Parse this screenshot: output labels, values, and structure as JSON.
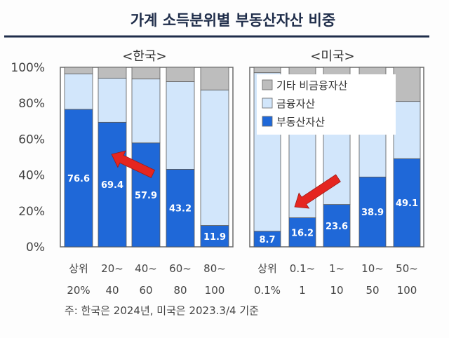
{
  "title": "가계 소득분위별 부동산자산 비중",
  "note": "주: 한국은 2024년, 미국은 2023.3/4 기준",
  "colors": {
    "real_estate": "#1f68d8",
    "financial": "#d2e6fb",
    "other": "#bdbdbd",
    "arrow": "#e52620",
    "title_rule": "#1f2d4a"
  },
  "legend": {
    "items": [
      {
        "label": "기타 비금융자산",
        "color": "#bdbdbd"
      },
      {
        "label": "금융자산",
        "color": "#d2e6fb"
      },
      {
        "label": "부동산자산",
        "color": "#1f68d8"
      }
    ]
  },
  "chart_data": [
    {
      "type": "bar",
      "stacked": true,
      "title": "<한국>",
      "ylim": [
        0,
        100
      ],
      "yticks": [
        "0%",
        "20%",
        "40%",
        "60%",
        "80%",
        "100%"
      ],
      "categories": [
        [
          "상위",
          "20%"
        ],
        [
          "20~",
          "40"
        ],
        [
          "40~",
          "60"
        ],
        [
          "60~",
          "80"
        ],
        [
          "80~",
          "100"
        ]
      ],
      "series": [
        {
          "name": "부동산자산",
          "values": [
            76.6,
            69.4,
            57.9,
            43.2,
            11.9
          ]
        },
        {
          "name": "금융자산",
          "values": [
            19.8,
            24.6,
            35.6,
            48.8,
            75.5
          ]
        },
        {
          "name": "기타 비금융자산",
          "values": [
            3.6,
            6.0,
            6.5,
            8.0,
            12.6
          ]
        }
      ],
      "labels": [
        "76.6",
        "69.4",
        "57.9",
        "43.2",
        "11.9"
      ]
    },
    {
      "type": "bar",
      "stacked": true,
      "title": "<미국>",
      "ylim": [
        0,
        100
      ],
      "categories": [
        [
          "상위",
          "0.1%"
        ],
        [
          "0.1~",
          "1"
        ],
        [
          "1~",
          "10"
        ],
        [
          "10~",
          "50"
        ],
        [
          "50~",
          "100"
        ]
      ],
      "series": [
        {
          "name": "부동산자산",
          "values": [
            8.7,
            16.2,
            23.6,
            38.9,
            49.1
          ]
        },
        {
          "name": "금융자산",
          "values": [
            88.3,
            79.8,
            70.4,
            55.6,
            31.9
          ]
        },
        {
          "name": "기타 비금융자산",
          "values": [
            3.0,
            4.0,
            6.0,
            5.5,
            19.0
          ]
        }
      ],
      "labels": [
        "8.7",
        "16.2",
        "23.6",
        "38.9",
        "49.1"
      ]
    }
  ]
}
